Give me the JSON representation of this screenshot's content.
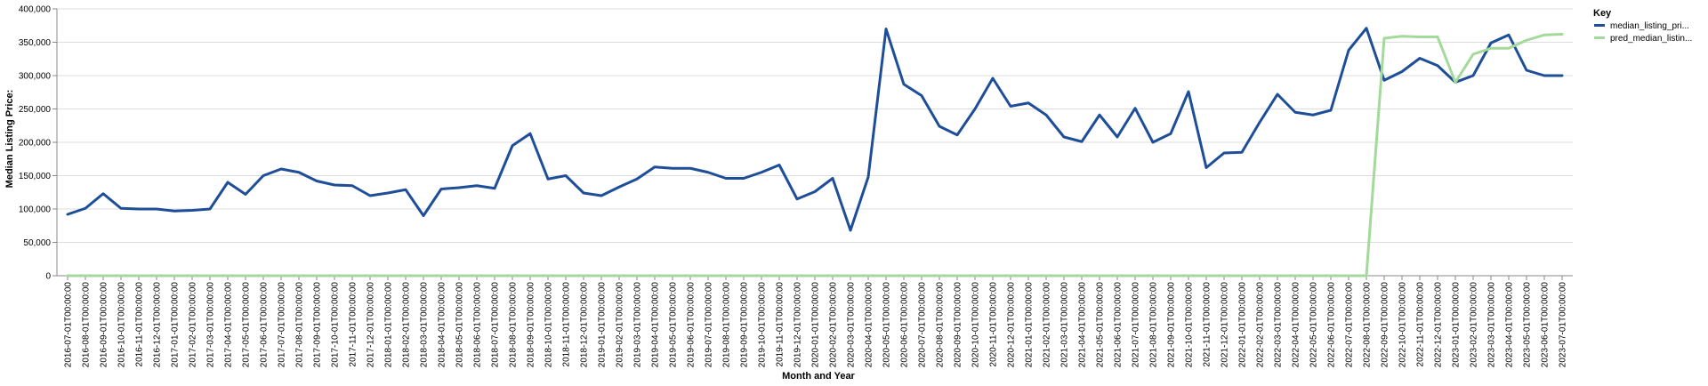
{
  "chart_data": {
    "type": "line",
    "xlabel": "Month and Year",
    "ylabel": "Median Listing Price:",
    "ylim": [
      0,
      400000
    ],
    "yticks": [
      0,
      50000,
      100000,
      150000,
      200000,
      250000,
      300000,
      350000,
      400000
    ],
    "ytick_labels": [
      "0",
      "50,000",
      "100,000",
      "150,000",
      "200,000",
      "250,000",
      "300,000",
      "350,000",
      "400,000"
    ],
    "grid": true,
    "legend": {
      "title": "Key",
      "placement": "top-right",
      "entries": [
        "median_listing_pri...",
        "pred_median_listin..."
      ]
    },
    "x": [
      "2016-07-01T00:00:00",
      "2016-08-01T00:00:00",
      "2016-09-01T00:00:00",
      "2016-10-01T00:00:00",
      "2016-11-01T00:00:00",
      "2016-12-01T00:00:00",
      "2017-01-01T00:00:00",
      "2017-02-01T00:00:00",
      "2017-03-01T00:00:00",
      "2017-04-01T00:00:00",
      "2017-05-01T00:00:00",
      "2017-06-01T00:00:00",
      "2017-07-01T00:00:00",
      "2017-08-01T00:00:00",
      "2017-09-01T00:00:00",
      "2017-10-01T00:00:00",
      "2017-11-01T00:00:00",
      "2017-12-01T00:00:00",
      "2018-01-01T00:00:00",
      "2018-02-01T00:00:00",
      "2018-03-01T00:00:00",
      "2018-04-01T00:00:00",
      "2018-05-01T00:00:00",
      "2018-06-01T00:00:00",
      "2018-07-01T00:00:00",
      "2018-08-01T00:00:00",
      "2018-09-01T00:00:00",
      "2018-10-01T00:00:00",
      "2018-11-01T00:00:00",
      "2018-12-01T00:00:00",
      "2019-01-01T00:00:00",
      "2019-02-01T00:00:00",
      "2019-03-01T00:00:00",
      "2019-04-01T00:00:00",
      "2019-05-01T00:00:00",
      "2019-06-01T00:00:00",
      "2019-07-01T00:00:00",
      "2019-08-01T00:00:00",
      "2019-09-01T00:00:00",
      "2019-10-01T00:00:00",
      "2019-11-01T00:00:00",
      "2019-12-01T00:00:00",
      "2020-01-01T00:00:00",
      "2020-02-01T00:00:00",
      "2020-03-01T00:00:00",
      "2020-04-01T00:00:00",
      "2020-05-01T00:00:00",
      "2020-06-01T00:00:00",
      "2020-07-01T00:00:00",
      "2020-08-01T00:00:00",
      "2020-09-01T00:00:00",
      "2020-10-01T00:00:00",
      "2020-11-01T00:00:00",
      "2020-12-01T00:00:00",
      "2021-01-01T00:00:00",
      "2021-02-01T00:00:00",
      "2021-03-01T00:00:00",
      "2021-04-01T00:00:00",
      "2021-05-01T00:00:00",
      "2021-06-01T00:00:00",
      "2021-07-01T00:00:00",
      "2021-08-01T00:00:00",
      "2021-09-01T00:00:00",
      "2021-10-01T00:00:00",
      "2021-11-01T00:00:00",
      "2021-12-01T00:00:00",
      "2022-01-01T00:00:00",
      "2022-02-01T00:00:00",
      "2022-03-01T00:00:00",
      "2022-04-01T00:00:00",
      "2022-05-01T00:00:00",
      "2022-06-01T00:00:00",
      "2022-07-01T00:00:00",
      "2022-08-01T00:00:00",
      "2022-09-01T00:00:00",
      "2022-10-01T00:00:00",
      "2022-11-01T00:00:00",
      "2022-12-01T00:00:00",
      "2023-01-01T00:00:00",
      "2023-02-01T00:00:00",
      "2023-03-01T00:00:00",
      "2023-04-01T00:00:00",
      "2023-05-01T00:00:00",
      "2023-06-01T00:00:00",
      "2023-07-01T00:00:00"
    ],
    "series": [
      {
        "name": "median_listing_pri...",
        "color": "#1f4e99",
        "values": [
          92000,
          101000,
          123000,
          101000,
          100000,
          100000,
          97000,
          98000,
          100000,
          140000,
          122000,
          150000,
          160000,
          155000,
          142000,
          136000,
          135000,
          120000,
          124000,
          129000,
          90000,
          130000,
          132000,
          135000,
          131000,
          195000,
          213000,
          145000,
          150000,
          124000,
          120000,
          133000,
          145000,
          163000,
          161000,
          161000,
          155000,
          146000,
          146000,
          155000,
          166000,
          115000,
          126000,
          146000,
          68000,
          148000,
          370000,
          287000,
          270000,
          224000,
          211000,
          250000,
          296000,
          254000,
          259000,
          241000,
          208000,
          201000,
          241000,
          208000,
          251000,
          200000,
          213000,
          276000,
          162000,
          184000,
          185000,
          230000,
          272000,
          245000,
          241000,
          248000,
          338000,
          371000,
          293000,
          306000,
          326000,
          315000,
          290000,
          300000,
          349000,
          361000,
          308000,
          300000,
          300000
        ]
      },
      {
        "name": "pred_median_listin...",
        "color": "#a3d99a",
        "values": [
          0,
          0,
          0,
          0,
          0,
          0,
          0,
          0,
          0,
          0,
          0,
          0,
          0,
          0,
          0,
          0,
          0,
          0,
          0,
          0,
          0,
          0,
          0,
          0,
          0,
          0,
          0,
          0,
          0,
          0,
          0,
          0,
          0,
          0,
          0,
          0,
          0,
          0,
          0,
          0,
          0,
          0,
          0,
          0,
          0,
          0,
          0,
          0,
          0,
          0,
          0,
          0,
          0,
          0,
          0,
          0,
          0,
          0,
          0,
          0,
          0,
          0,
          0,
          0,
          0,
          0,
          0,
          0,
          0,
          0,
          0,
          0,
          0,
          0,
          356000,
          359000,
          358000,
          358000,
          290000,
          332000,
          341000,
          341000,
          353000,
          361000,
          362000
        ]
      }
    ]
  }
}
